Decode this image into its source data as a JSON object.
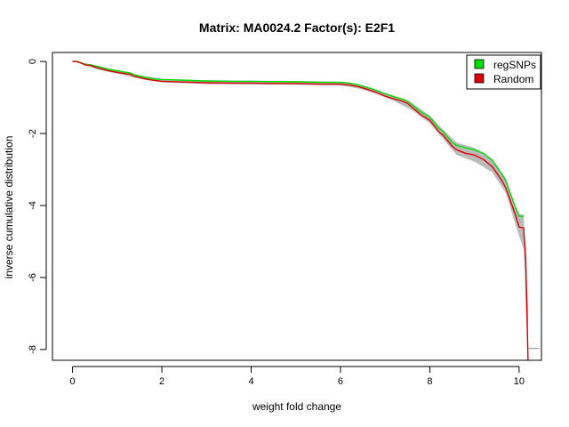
{
  "chart_data": {
    "type": "line",
    "title": "Matrix: MA0024.2 Factor(s): E2F1",
    "xlabel": "weight fold change",
    "ylabel": "inverse cumulative distribution",
    "xlim": [
      -0.45,
      10.5
    ],
    "ylim": [
      -8.3,
      0.25
    ],
    "xticks": [
      0,
      2,
      4,
      6,
      8,
      10
    ],
    "yticks": [
      0,
      -2,
      -4,
      -6,
      -8
    ],
    "grid": false,
    "legend_position": "top-right",
    "series": [
      {
        "name": "regSNPs",
        "color": "#00dd00",
        "x": [
          0,
          0.1,
          0.2,
          0.3,
          0.4,
          0.5,
          0.6,
          0.8,
          1.0,
          1.2,
          1.3,
          1.4,
          1.5,
          1.6,
          1.8,
          2.0,
          2.5,
          3.0,
          3.5,
          4.0,
          4.5,
          5.0,
          5.5,
          6.0,
          6.2,
          6.4,
          6.6,
          6.8,
          7.0,
          7.2,
          7.4,
          7.5,
          7.6,
          7.8,
          8.0,
          8.1,
          8.2,
          8.3,
          8.4,
          8.5,
          8.6,
          8.8,
          9.0,
          9.2,
          9.4,
          9.6,
          9.7,
          9.8,
          9.9,
          10.0,
          10.1
        ],
        "y": [
          0.0,
          0.0,
          -0.04,
          -0.09,
          -0.09,
          -0.12,
          -0.15,
          -0.22,
          -0.26,
          -0.3,
          -0.32,
          -0.38,
          -0.4,
          -0.44,
          -0.48,
          -0.5,
          -0.52,
          -0.54,
          -0.55,
          -0.55,
          -0.56,
          -0.56,
          -0.58,
          -0.58,
          -0.6,
          -0.65,
          -0.72,
          -0.8,
          -0.9,
          -0.98,
          -1.05,
          -1.1,
          -1.2,
          -1.4,
          -1.55,
          -1.7,
          -1.85,
          -1.95,
          -2.1,
          -2.25,
          -2.33,
          -2.4,
          -2.45,
          -2.55,
          -2.75,
          -3.1,
          -3.3,
          -3.65,
          -4.0,
          -4.3,
          -4.3
        ]
      },
      {
        "name": "Random",
        "color": "#dd0000",
        "x": [
          0,
          0.1,
          0.2,
          0.3,
          0.4,
          0.5,
          0.6,
          0.8,
          1.0,
          1.2,
          1.3,
          1.4,
          1.5,
          1.6,
          1.8,
          2.0,
          2.5,
          3.0,
          3.5,
          4.0,
          4.5,
          5.0,
          5.5,
          6.0,
          6.2,
          6.4,
          6.6,
          6.8,
          7.0,
          7.2,
          7.4,
          7.5,
          7.6,
          7.8,
          8.0,
          8.1,
          8.2,
          8.3,
          8.4,
          8.5,
          8.6,
          8.8,
          9.0,
          9.2,
          9.4,
          9.6,
          9.7,
          9.8,
          9.9,
          10.0,
          10.1,
          10.15,
          10.2
        ],
        "y": [
          0.0,
          0.0,
          -0.05,
          -0.1,
          -0.11,
          -0.15,
          -0.19,
          -0.26,
          -0.3,
          -0.34,
          -0.36,
          -0.42,
          -0.44,
          -0.48,
          -0.52,
          -0.55,
          -0.57,
          -0.59,
          -0.6,
          -0.6,
          -0.61,
          -0.61,
          -0.63,
          -0.63,
          -0.65,
          -0.7,
          -0.77,
          -0.86,
          -0.96,
          -1.04,
          -1.11,
          -1.16,
          -1.27,
          -1.48,
          -1.63,
          -1.79,
          -1.95,
          -2.05,
          -2.2,
          -2.35,
          -2.45,
          -2.55,
          -2.6,
          -2.72,
          -2.92,
          -3.28,
          -3.5,
          -3.85,
          -4.2,
          -4.6,
          -4.62,
          -5.5,
          -8.3
        ]
      }
    ],
    "band": {
      "color": "#bbbbbb",
      "x": [
        0,
        0.2,
        0.5,
        1.0,
        1.5,
        2.0,
        3.0,
        4.0,
        5.0,
        6.0,
        6.4,
        6.8,
        7.2,
        7.6,
        8.0,
        8.3,
        8.6,
        9.0,
        9.4,
        9.7,
        9.9,
        10.0,
        10.1,
        10.2
      ],
      "upper": [
        0.0,
        -0.02,
        -0.1,
        -0.24,
        -0.38,
        -0.48,
        -0.52,
        -0.53,
        -0.54,
        -0.56,
        -0.63,
        -0.78,
        -0.95,
        -1.15,
        -1.5,
        -1.9,
        -2.25,
        -2.4,
        -2.7,
        -3.25,
        -3.95,
        -4.25,
        -4.25,
        -6.8
      ],
      "lower": [
        0.0,
        -0.07,
        -0.2,
        -0.34,
        -0.48,
        -0.58,
        -0.63,
        -0.64,
        -0.65,
        -0.67,
        -0.75,
        -0.9,
        -1.1,
        -1.35,
        -1.72,
        -2.15,
        -2.6,
        -2.78,
        -3.08,
        -3.65,
        -4.45,
        -4.85,
        -5.2,
        -8.2
      ]
    },
    "tail_segment": {
      "x": [
        10.2,
        10.45
      ],
      "y": [
        -7.97,
        -7.97
      ],
      "color": "#999999"
    }
  }
}
